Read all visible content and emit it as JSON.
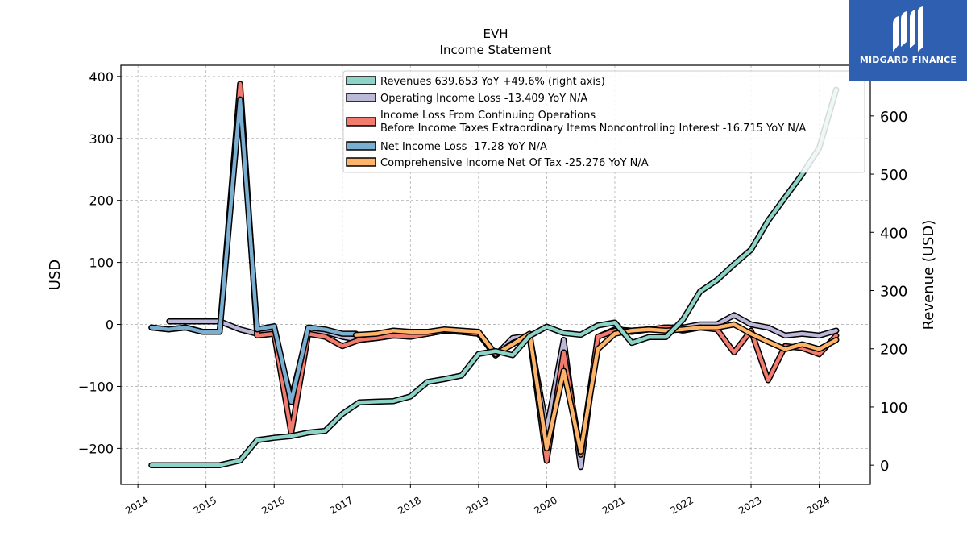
{
  "chart_data": {
    "type": "line",
    "title": "EVH",
    "subtitle": "Income Statement",
    "ylabel": "USD",
    "ylabel_right": "Revenue (USD)",
    "ylim": [
      -258,
      418
    ],
    "ylim_right": [
      -33,
      687
    ],
    "yticks": [
      -200,
      -100,
      0,
      100,
      200,
      300,
      400
    ],
    "yticks_right": [
      0,
      100,
      200,
      300,
      400,
      500,
      600
    ],
    "xlim": [
      2013.75,
      2024.75
    ],
    "xticks": [
      2014,
      2015,
      2016,
      2017,
      2018,
      2019,
      2020,
      2021,
      2022,
      2023,
      2024
    ],
    "grid": true,
    "legend_position": "top-right",
    "series": [
      {
        "name": "Operating Income Loss",
        "legend": "Operating Income Loss  -13.409 YoY N/A",
        "color": "#bcb9d8",
        "axis": "left",
        "x": [
          2014.46,
          2014.7,
          2014.95,
          2015.2,
          2015.5,
          2015.75,
          2016.0,
          2016.25,
          2016.5,
          2016.75,
          2017.0,
          2017.25,
          2017.5,
          2017.75,
          2018.0,
          2018.25,
          2018.5,
          2018.75,
          2019.0,
          2019.25,
          2019.5,
          2019.75,
          2020.0,
          2020.25,
          2020.5,
          2020.75,
          2021.0,
          2021.25,
          2021.5,
          2021.75,
          2022.0,
          2022.25,
          2022.5,
          2022.75,
          2023.0,
          2023.25,
          2023.5,
          2023.75,
          2024.0,
          2024.25
        ],
        "y": [
          5,
          5,
          5,
          5,
          -8,
          -15,
          -12,
          -120,
          -10,
          -12,
          -20,
          -25,
          -22,
          -18,
          -18,
          -15,
          -10,
          -12,
          -15,
          -50,
          -22,
          -18,
          -170,
          -25,
          -230,
          -20,
          -8,
          -10,
          -8,
          -5,
          -5,
          0,
          0,
          15,
          0,
          -5,
          -18,
          -15,
          -18,
          -10
        ]
      },
      {
        "name": "Income Loss From Continuing Operations Before Income Taxes Extraordinary Items Noncontrolling Interest",
        "legend": "Income Loss From Continuing Operations\nBefore Income Taxes Extraordinary Items Noncontrolling Interest  -16.715 YoY N/A",
        "color": "#f07b6e",
        "axis": "left",
        "x": [
          2014.2,
          2014.45,
          2014.7,
          2014.95,
          2015.2,
          2015.5,
          2015.75,
          2016.0,
          2016.25,
          2016.5,
          2016.75,
          2017.0,
          2017.25,
          2017.5,
          2017.75,
          2018.0,
          2018.25,
          2018.5,
          2018.75,
          2019.0,
          2019.25,
          2019.5,
          2019.75,
          2020.0,
          2020.25,
          2020.5,
          2020.75,
          2021.0,
          2021.25,
          2021.5,
          2021.75,
          2022.0,
          2022.25,
          2022.5,
          2022.75,
          2023.0,
          2023.25,
          2023.5,
          2023.75,
          2024.0,
          2024.25
        ],
        "y": [
          -5,
          -8,
          -5,
          -12,
          -12,
          388,
          -18,
          -15,
          -175,
          -15,
          -20,
          -35,
          -25,
          -22,
          -18,
          -20,
          -15,
          -10,
          -12,
          -15,
          -50,
          -30,
          -20,
          -220,
          -45,
          -210,
          -20,
          -10,
          -12,
          -8,
          -5,
          -10,
          -5,
          -8,
          -45,
          -10,
          -90,
          -35,
          -38,
          -48,
          -18
        ]
      },
      {
        "name": "Net Income Loss",
        "legend": "Net Income Loss  -17.28 YoY N/A",
        "color": "#7aafd2",
        "axis": "left",
        "x": [
          2014.2,
          2014.45,
          2014.7,
          2014.95,
          2015.2,
          2015.5,
          2015.75,
          2016.0,
          2016.25,
          2016.5,
          2016.75,
          2017.0,
          2017.2
        ],
        "y": [
          -5,
          -8,
          -5,
          -12,
          -12,
          363,
          -8,
          -3,
          -125,
          -5,
          -8,
          -15,
          -15
        ]
      },
      {
        "name": "Comprehensive Income Net Of Tax",
        "legend": "Comprehensive Income Net Of Tax  -25.276 YoY N/A",
        "color": "#fdb468",
        "axis": "left",
        "x": [
          2017.2,
          2017.5,
          2017.75,
          2018.0,
          2018.25,
          2018.5,
          2018.75,
          2019.0,
          2019.25,
          2019.5,
          2019.75,
          2020.0,
          2020.25,
          2020.5,
          2020.75,
          2021.0,
          2021.25,
          2021.5,
          2021.75,
          2022.0,
          2022.25,
          2022.5,
          2022.75,
          2023.0,
          2023.25,
          2023.5,
          2023.75,
          2024.0,
          2024.25
        ],
        "y": [
          -17,
          -15,
          -10,
          -12,
          -12,
          -8,
          -10,
          -12,
          -48,
          -32,
          -15,
          -200,
          -75,
          -205,
          -40,
          -15,
          -10,
          -8,
          -10,
          -8,
          -5,
          -5,
          0,
          -15,
          -28,
          -40,
          -32,
          -40,
          -25
        ]
      },
      {
        "name": "Revenues",
        "legend": "Revenues  639.653 YoY +49.6% (right axis)",
        "color": "#8dd3c7",
        "axis": "right",
        "x": [
          2014.2,
          2014.45,
          2014.7,
          2014.95,
          2015.2,
          2015.5,
          2015.75,
          2016.0,
          2016.25,
          2016.5,
          2016.75,
          2017.0,
          2017.25,
          2017.5,
          2017.75,
          2018.0,
          2018.25,
          2018.5,
          2018.75,
          2019.0,
          2019.25,
          2019.5,
          2019.75,
          2020.0,
          2020.25,
          2020.5,
          2020.75,
          2021.0,
          2021.25,
          2021.5,
          2021.75,
          2022.0,
          2022.25,
          2022.5,
          2022.75,
          2023.0,
          2023.25,
          2023.5,
          2023.75,
          2024.0,
          2024.25
        ],
        "y": [
          0,
          0,
          0,
          0,
          0,
          8,
          43,
          47,
          50,
          56,
          59,
          88,
          108,
          109,
          110,
          118,
          143,
          148,
          154,
          191,
          196,
          189,
          222,
          238,
          227,
          224,
          240,
          245,
          210,
          220,
          220,
          250,
          298,
          318,
          345,
          370,
          420,
          460,
          500,
          545,
          645
        ]
      }
    ],
    "legend_order": [
      4,
      0,
      1,
      2,
      3
    ]
  },
  "logo": {
    "text": "MIDGARD FINANCE",
    "background": "#2e5fb0"
  }
}
